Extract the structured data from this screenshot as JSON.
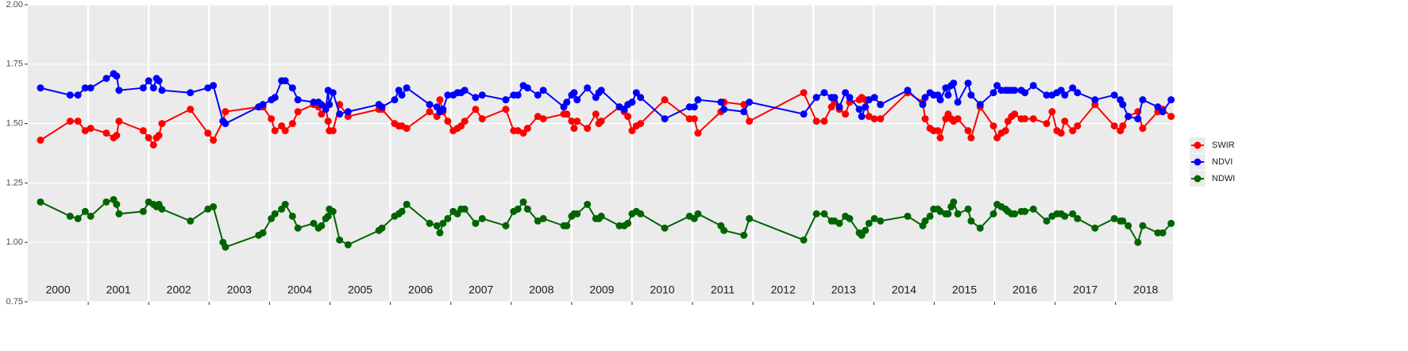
{
  "chart_data": {
    "type": "line",
    "x": [
      2000.21,
      2000.7,
      2000.83,
      2000.95,
      2001.04,
      2001.3,
      2001.42,
      2001.47,
      2001.51,
      2001.91,
      2002.0,
      2002.08,
      2002.13,
      2002.17,
      2002.22,
      2002.69,
      2002.98,
      2003.07,
      2003.23,
      2003.27,
      2003.82,
      2003.89,
      2004.03,
      2004.09,
      2004.2,
      2004.26,
      2004.38,
      2004.47,
      2004.73,
      2004.81,
      2004.86,
      2004.93,
      2004.97,
      2004.99,
      2005.05,
      2005.16,
      2005.3,
      2005.81,
      2005.86,
      2006.07,
      2006.14,
      2006.19,
      2006.27,
      2006.65,
      2006.77,
      2006.82,
      2006.87,
      2006.95,
      2007.04,
      2007.11,
      2007.17,
      2007.23,
      2007.41,
      2007.52,
      2007.91,
      2008.04,
      2008.11,
      2008.2,
      2008.27,
      2008.44,
      2008.53,
      2008.87,
      2008.92,
      2009.0,
      2009.04,
      2009.09,
      2009.26,
      2009.4,
      2009.45,
      2009.49,
      2009.79,
      2009.87,
      2009.93,
      2010.0,
      2010.07,
      2010.14,
      2010.54,
      2010.95,
      2011.03,
      2011.09,
      2011.47,
      2011.52,
      2011.85,
      2011.94,
      2012.84,
      2013.05,
      2013.18,
      2013.3,
      2013.35,
      2013.43,
      2013.53,
      2013.6,
      2013.76,
      2013.8,
      2013.86,
      2013.92,
      2014.01,
      2014.11,
      2014.56,
      2014.81,
      2014.85,
      2014.93,
      2014.99,
      2015.06,
      2015.1,
      2015.19,
      2015.23,
      2015.28,
      2015.32,
      2015.39,
      2015.56,
      2015.61,
      2015.76,
      2015.98,
      2016.04,
      2016.11,
      2016.18,
      2016.22,
      2016.28,
      2016.33,
      2016.44,
      2016.5,
      2016.64,
      2016.86,
      2016.95,
      2017.03,
      2017.1,
      2017.16,
      2017.29,
      2017.37,
      2017.66,
      2017.98,
      2018.08,
      2018.12,
      2018.21,
      2018.37,
      2018.45,
      2018.7,
      2018.78,
      2018.92
    ],
    "series": [
      {
        "name": "SWIR",
        "color": "#ff0000",
        "values": [
          1.43,
          1.51,
          1.51,
          1.47,
          1.48,
          1.46,
          1.44,
          1.45,
          1.51,
          1.47,
          1.44,
          1.41,
          1.44,
          1.45,
          1.5,
          1.56,
          1.46,
          1.43,
          1.51,
          1.55,
          1.57,
          1.57,
          1.52,
          1.47,
          1.49,
          1.47,
          1.5,
          1.55,
          1.58,
          1.57,
          1.54,
          1.57,
          1.51,
          1.47,
          1.47,
          1.58,
          1.53,
          1.56,
          1.56,
          1.5,
          1.49,
          1.49,
          1.48,
          1.55,
          1.53,
          1.6,
          1.55,
          1.51,
          1.47,
          1.48,
          1.49,
          1.51,
          1.56,
          1.52,
          1.56,
          1.47,
          1.47,
          1.46,
          1.48,
          1.53,
          1.52,
          1.54,
          1.54,
          1.51,
          1.48,
          1.51,
          1.48,
          1.54,
          1.5,
          1.51,
          1.57,
          1.55,
          1.53,
          1.47,
          1.49,
          1.5,
          1.6,
          1.52,
          1.52,
          1.46,
          1.55,
          1.59,
          1.58,
          1.51,
          1.63,
          1.51,
          1.51,
          1.57,
          1.59,
          1.56,
          1.54,
          1.59,
          1.6,
          1.61,
          1.6,
          1.53,
          1.52,
          1.52,
          1.63,
          1.59,
          1.52,
          1.48,
          1.47,
          1.47,
          1.44,
          1.52,
          1.54,
          1.52,
          1.51,
          1.52,
          1.47,
          1.44,
          1.57,
          1.49,
          1.44,
          1.46,
          1.47,
          1.51,
          1.53,
          1.54,
          1.52,
          1.52,
          1.52,
          1.5,
          1.55,
          1.47,
          1.46,
          1.51,
          1.47,
          1.49,
          1.58,
          1.49,
          1.47,
          1.49,
          1.53,
          1.55,
          1.48,
          1.55,
          1.56,
          1.53
        ]
      },
      {
        "name": "NDVI",
        "color": "#0000ff",
        "values": [
          1.65,
          1.62,
          1.62,
          1.65,
          1.65,
          1.69,
          1.71,
          1.7,
          1.64,
          1.65,
          1.68,
          1.65,
          1.69,
          1.68,
          1.64,
          1.63,
          1.65,
          1.66,
          1.51,
          1.5,
          1.57,
          1.58,
          1.6,
          1.61,
          1.68,
          1.68,
          1.65,
          1.6,
          1.59,
          1.59,
          1.58,
          1.56,
          1.64,
          1.58,
          1.63,
          1.54,
          1.55,
          1.58,
          1.57,
          1.6,
          1.64,
          1.62,
          1.65,
          1.58,
          1.57,
          1.55,
          1.56,
          1.62,
          1.62,
          1.63,
          1.63,
          1.64,
          1.61,
          1.62,
          1.6,
          1.62,
          1.62,
          1.66,
          1.65,
          1.62,
          1.64,
          1.57,
          1.59,
          1.62,
          1.63,
          1.6,
          1.65,
          1.61,
          1.63,
          1.64,
          1.57,
          1.56,
          1.58,
          1.59,
          1.63,
          1.61,
          1.52,
          1.57,
          1.57,
          1.6,
          1.59,
          1.56,
          1.55,
          1.59,
          1.54,
          1.61,
          1.63,
          1.61,
          1.61,
          1.57,
          1.63,
          1.61,
          1.56,
          1.53,
          1.57,
          1.6,
          1.61,
          1.58,
          1.64,
          1.58,
          1.61,
          1.63,
          1.62,
          1.62,
          1.6,
          1.65,
          1.62,
          1.66,
          1.67,
          1.59,
          1.67,
          1.62,
          1.58,
          1.63,
          1.66,
          1.64,
          1.64,
          1.64,
          1.64,
          1.64,
          1.64,
          1.63,
          1.66,
          1.62,
          1.62,
          1.63,
          1.64,
          1.62,
          1.65,
          1.63,
          1.6,
          1.62,
          1.6,
          1.58,
          1.53,
          1.52,
          1.6,
          1.57,
          1.55,
          1.6
        ]
      },
      {
        "name": "NDWI",
        "color": "#006400",
        "values": [
          1.17,
          1.11,
          1.1,
          1.13,
          1.11,
          1.17,
          1.18,
          1.16,
          1.12,
          1.13,
          1.17,
          1.16,
          1.15,
          1.16,
          1.14,
          1.09,
          1.14,
          1.15,
          1.0,
          0.98,
          1.03,
          1.04,
          1.1,
          1.12,
          1.14,
          1.16,
          1.11,
          1.06,
          1.08,
          1.06,
          1.07,
          1.1,
          1.11,
          1.14,
          1.13,
          1.01,
          0.99,
          1.05,
          1.06,
          1.11,
          1.12,
          1.13,
          1.16,
          1.08,
          1.07,
          1.04,
          1.08,
          1.1,
          1.13,
          1.12,
          1.14,
          1.14,
          1.08,
          1.1,
          1.07,
          1.13,
          1.14,
          1.17,
          1.14,
          1.09,
          1.1,
          1.07,
          1.07,
          1.11,
          1.12,
          1.12,
          1.16,
          1.1,
          1.1,
          1.11,
          1.07,
          1.07,
          1.08,
          1.12,
          1.13,
          1.12,
          1.06,
          1.11,
          1.1,
          1.12,
          1.07,
          1.05,
          1.03,
          1.1,
          1.01,
          1.12,
          1.12,
          1.09,
          1.09,
          1.08,
          1.11,
          1.1,
          1.04,
          1.03,
          1.05,
          1.08,
          1.1,
          1.09,
          1.11,
          1.07,
          1.09,
          1.11,
          1.14,
          1.14,
          1.13,
          1.12,
          1.12,
          1.15,
          1.17,
          1.12,
          1.14,
          1.09,
          1.06,
          1.12,
          1.16,
          1.15,
          1.14,
          1.13,
          1.12,
          1.12,
          1.13,
          1.13,
          1.14,
          1.09,
          1.11,
          1.12,
          1.12,
          1.11,
          1.12,
          1.1,
          1.06,
          1.1,
          1.09,
          1.09,
          1.07,
          1.0,
          1.07,
          1.04,
          1.04,
          1.08
        ]
      }
    ],
    "xlim": [
      2000,
      2018.95
    ],
    "xticks": [
      2001,
      2002,
      2003,
      2004,
      2005,
      2006,
      2007,
      2008,
      2009,
      2010,
      2011,
      2012,
      2013,
      2014,
      2015,
      2016,
      2017,
      2018
    ],
    "year_labels": [
      2000,
      2001,
      2002,
      2003,
      2004,
      2005,
      2006,
      2007,
      2008,
      2009,
      2010,
      2011,
      2012,
      2013,
      2014,
      2015,
      2016,
      2017,
      2018
    ],
    "ylim": [
      0.75,
      2
    ],
    "yticks": [
      0.75,
      {
        "value": 1,
        "label": "1.00"
      },
      1.25,
      {
        "value": 1.5,
        "label": "1.50"
      },
      1.75,
      {
        "value": 2,
        "label": "2.00"
      }
    ],
    "grid": true,
    "legend": "right"
  }
}
